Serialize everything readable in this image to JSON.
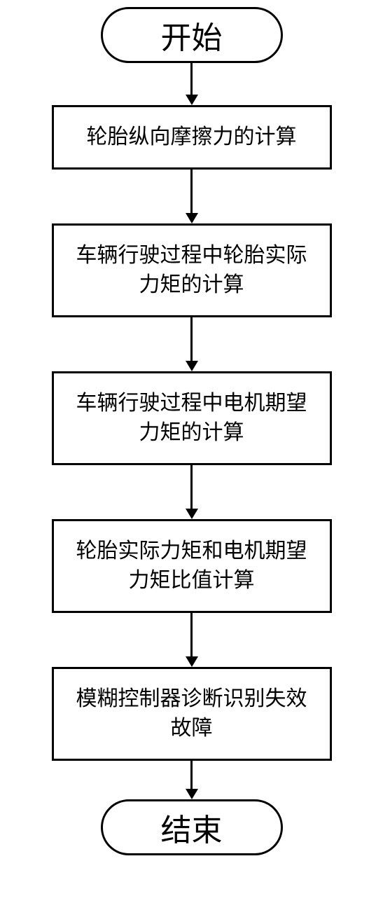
{
  "flowchart": {
    "type": "flowchart",
    "background_color": "#ffffff",
    "border_color": "#000000",
    "border_width": 3,
    "text_color": "#000000",
    "terminal_fontsize": 44,
    "process_fontsize": 30,
    "terminal_width": 260,
    "terminal_height": 80,
    "terminal_border_radius": 40,
    "process_width": 400,
    "arrow_color": "#000000",
    "nodes": {
      "start": {
        "type": "terminal",
        "label": "开始"
      },
      "step1": {
        "type": "process",
        "label": "轮胎纵向摩擦力的计算"
      },
      "step2": {
        "type": "process",
        "label": "车辆行驶过程中轮胎实际力矩的计算"
      },
      "step3": {
        "type": "process",
        "label": "车辆行驶过程中电机期望力矩的计算"
      },
      "step4": {
        "type": "process",
        "label": "轮胎实际力矩和电机期望力矩比值计算"
      },
      "step5": {
        "type": "process",
        "label": "模糊控制器诊断识别失效故障"
      },
      "end": {
        "type": "terminal",
        "label": "结束"
      }
    },
    "arrows": {
      "a0": {
        "line_height": 45
      },
      "a1": {
        "line_height": 62
      },
      "a2": {
        "line_height": 62
      },
      "a3": {
        "line_height": 62
      },
      "a4": {
        "line_height": 62
      },
      "a5": {
        "line_height": 40
      }
    },
    "edges": [
      {
        "from": "start",
        "to": "step1"
      },
      {
        "from": "step1",
        "to": "step2"
      },
      {
        "from": "step2",
        "to": "step3"
      },
      {
        "from": "step3",
        "to": "step4"
      },
      {
        "from": "step4",
        "to": "step5"
      },
      {
        "from": "step5",
        "to": "end"
      }
    ]
  }
}
